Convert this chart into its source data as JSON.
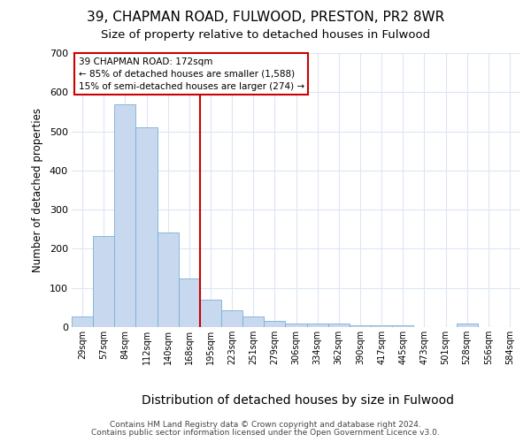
{
  "title_line1": "39, CHAPMAN ROAD, FULWOOD, PRESTON, PR2 8WR",
  "title_line2": "Size of property relative to detached houses in Fulwood",
  "xlabel": "Distribution of detached houses by size in Fulwood",
  "ylabel": "Number of detached properties",
  "footer_line1": "Contains HM Land Registry data © Crown copyright and database right 2024.",
  "footer_line2": "Contains public sector information licensed under the Open Government Licence v3.0.",
  "annotation_line1": "39 CHAPMAN ROAD: 172sqm",
  "annotation_line2": "← 85% of detached houses are smaller (1,588)",
  "annotation_line3": "15% of semi-detached houses are larger (274) →",
  "bar_labels": [
    "29sqm",
    "57sqm",
    "84sqm",
    "112sqm",
    "140sqm",
    "168sqm",
    "195sqm",
    "223sqm",
    "251sqm",
    "279sqm",
    "306sqm",
    "334sqm",
    "362sqm",
    "390sqm",
    "417sqm",
    "445sqm",
    "473sqm",
    "501sqm",
    "528sqm",
    "556sqm",
    "584sqm"
  ],
  "bar_values": [
    28,
    232,
    570,
    510,
    242,
    125,
    70,
    42,
    28,
    15,
    10,
    10,
    10,
    5,
    5,
    5,
    0,
    0,
    8,
    0,
    0
  ],
  "bar_color": "#c8d9ef",
  "bar_edge_color": "#7aafd4",
  "vline_x": 5,
  "vline_color": "#cc0000",
  "ylim": [
    0,
    700
  ],
  "yticks": [
    0,
    100,
    200,
    300,
    400,
    500,
    600,
    700
  ],
  "background_color": "#ffffff",
  "grid_color": "#dce6f5",
  "title_fontsize": 11,
  "subtitle_fontsize": 9.5,
  "ylabel_fontsize": 8.5,
  "xlabel_fontsize": 10,
  "tick_fontsize": 7,
  "footer_fontsize": 6.5,
  "annot_fontsize": 7.5
}
